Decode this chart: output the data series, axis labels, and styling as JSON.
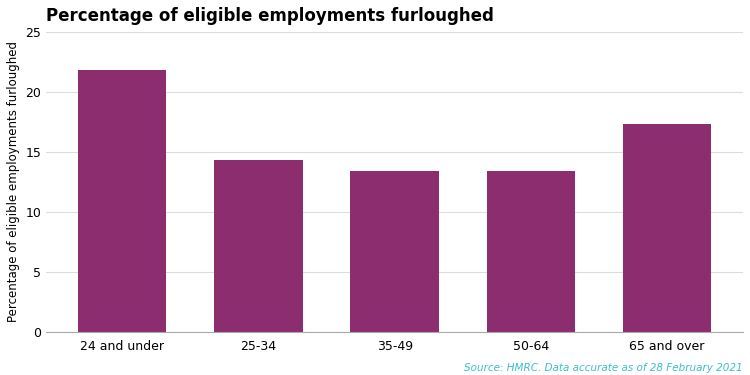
{
  "title": "Percentage of eligible employments furloughed",
  "categories": [
    "24 and under",
    "25-34",
    "35-49",
    "50-64",
    "65 and over"
  ],
  "values": [
    21.8,
    14.3,
    13.4,
    13.4,
    17.3
  ],
  "bar_color": "#8B2D6E",
  "ylabel": "Percentage of eligible employments furloughed",
  "ylim": [
    0,
    25
  ],
  "yticks": [
    0,
    5,
    10,
    15,
    20,
    25
  ],
  "source_text": "Source: HMRC. Data accurate as of 28 February 2021",
  "source_color": "#3BBFCE",
  "title_fontsize": 12,
  "axis_fontsize": 8.5,
  "tick_fontsize": 9,
  "source_fontsize": 7.5,
  "background_color": "#ffffff"
}
